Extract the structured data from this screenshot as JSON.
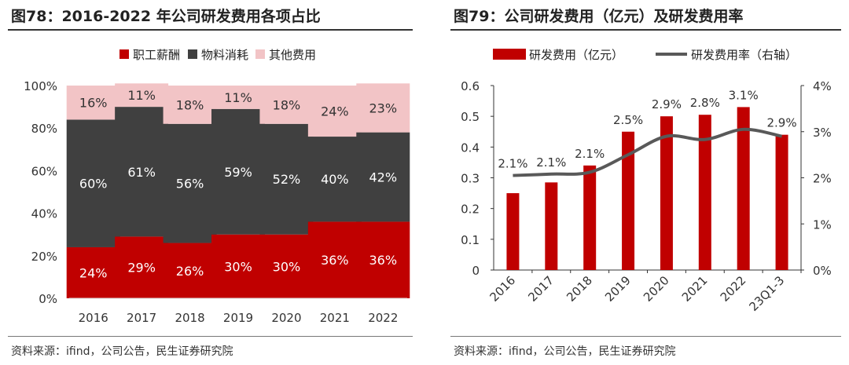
{
  "left": {
    "title": "图78：2016-2022 年公司研发费用各项占比",
    "source": "资料来源：ifind，公司公告，民生证券研究院",
    "chart_data": {
      "type": "bar",
      "stacked": true,
      "categories": [
        "2016",
        "2017",
        "2018",
        "2019",
        "2020",
        "2021",
        "2022"
      ],
      "series": [
        {
          "name": "职工薪酬",
          "color": "#c00000",
          "values": [
            24,
            29,
            26,
            30,
            30,
            36,
            36
          ],
          "labels": [
            "24%",
            "29%",
            "26%",
            "30%",
            "30%",
            "36%",
            "36%"
          ]
        },
        {
          "name": "物料消耗",
          "color": "#404040",
          "values": [
            60,
            61,
            56,
            59,
            52,
            40,
            42
          ],
          "labels": [
            "60%",
            "61%",
            "56%",
            "59%",
            "52%",
            "40%",
            "42%"
          ]
        },
        {
          "name": "其他费用",
          "color": "#f2c4c6",
          "values": [
            16,
            11,
            18,
            11,
            18,
            24,
            23
          ],
          "labels": [
            "16%",
            "11%",
            "18%",
            "11%",
            "18%",
            "24%",
            "23%"
          ]
        }
      ],
      "ylim": [
        0,
        100
      ],
      "yticks": [
        "0%",
        "20%",
        "40%",
        "60%",
        "80%",
        "100%"
      ],
      "legend_position": "top"
    }
  },
  "right": {
    "title": "图79：公司研发费用（亿元）及研发费用率",
    "source": "资料来源：ifind，公司公告，民生证券研究院",
    "chart_data": {
      "type": "bar+line",
      "categories": [
        "2016",
        "2017",
        "2018",
        "2019",
        "2020",
        "2021",
        "2022",
        "23Q1-3"
      ],
      "bar_series": {
        "name": "研发费用（亿元）",
        "color": "#c00000",
        "values": [
          0.25,
          0.285,
          0.34,
          0.45,
          0.5,
          0.505,
          0.53,
          0.44
        ]
      },
      "line_series": {
        "name": "研发费用率（右轴）",
        "color": "#595959",
        "values": [
          2.05,
          2.08,
          2.12,
          2.5,
          2.9,
          2.83,
          3.05,
          2.9
        ],
        "labels": [
          "2.1%",
          "2.1%",
          "2.1%",
          "2.5%",
          "2.9%",
          "2.8%",
          "3.1%",
          "2.9%"
        ]
      },
      "ylim_left": [
        0,
        0.6
      ],
      "yticks_left": [
        "0",
        "0.1",
        "0.2",
        "0.3",
        "0.4",
        "0.5",
        "0.6"
      ],
      "ylim_right": [
        0,
        4
      ],
      "yticks_right": [
        "0%",
        "1%",
        "2%",
        "3%",
        "4%"
      ],
      "legend_position": "top"
    }
  }
}
